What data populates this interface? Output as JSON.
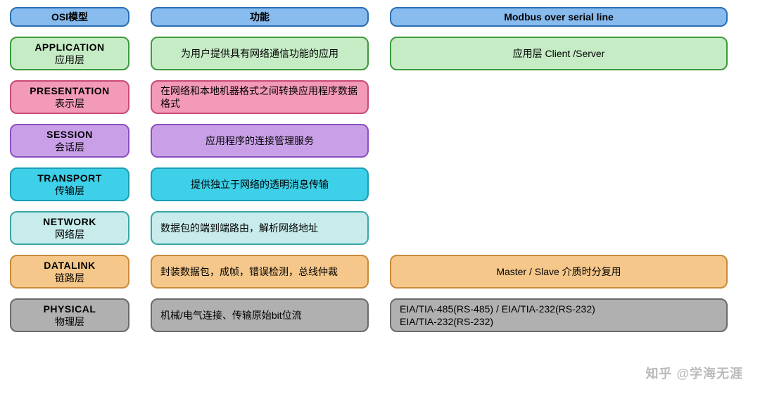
{
  "colors": {
    "header_bg": "#88bbee",
    "header_border": "#2a6fb5",
    "app_bg": "#c5ecc5",
    "app_border": "#3c9a3c",
    "pres_bg": "#f29ab8",
    "pres_border": "#c94b7a",
    "sess_bg": "#c9a0e8",
    "sess_border": "#8a4fc0",
    "trans_bg": "#3dd0e8",
    "trans_border": "#1a9db5",
    "net_bg": "#c8ecec",
    "net_border": "#3aa5a5",
    "data_bg": "#f5c78a",
    "data_border": "#c98a3a",
    "phys_bg": "#b0b0b0",
    "phys_border": "#6a6a6a",
    "text": "#000000"
  },
  "headers": {
    "col1": "OSI模型",
    "col2": "功能",
    "col3": "Modbus over serial line"
  },
  "layers": [
    {
      "key": "app",
      "osi_en": "APPLICATION",
      "osi_cn": "应用层",
      "func": "为用户提供具有网络通信功能的应用",
      "modbus": "应用层   Client /Server",
      "func_align": "center",
      "modbus_align": "center",
      "color_key": "app"
    },
    {
      "key": "pres",
      "osi_en": "PRESENTATION",
      "osi_cn": "表示层",
      "func": "在网络和本地机器格式之间转换应用程序数据格式",
      "modbus": "",
      "func_align": "left",
      "modbus_align": "center",
      "color_key": "pres"
    },
    {
      "key": "sess",
      "osi_en": "SESSION",
      "osi_cn": "会话层",
      "func": "应用程序的连接管理服务",
      "modbus": "",
      "func_align": "center",
      "modbus_align": "center",
      "color_key": "sess"
    },
    {
      "key": "trans",
      "osi_en": "TRANSPORT",
      "osi_cn": "传输层",
      "func": "提供独立于网络的透明消息传输",
      "modbus": "",
      "func_align": "center",
      "modbus_align": "center",
      "color_key": "trans"
    },
    {
      "key": "net",
      "osi_en": "NETWORK",
      "osi_cn": "网络层",
      "func": "数据包的端到端路由，解析网络地址",
      "modbus": "",
      "func_align": "left",
      "modbus_align": "center",
      "color_key": "net"
    },
    {
      "key": "data",
      "osi_en": "DATALINK",
      "osi_cn": "链路层",
      "func": "封装数据包，成帧，错误检测，总线仲裁",
      "modbus": "Master / Slave 介质时分复用",
      "func_align": "left",
      "modbus_align": "center",
      "color_key": "data"
    },
    {
      "key": "phys",
      "osi_en": "PHYSICAL",
      "osi_cn": "物理层",
      "func": "机械/电气连接、传输原始bit位流",
      "modbus": "EIA/TIA-485(RS-485)        /        EIA/TIA-232(RS-232)\nEIA/TIA-232(RS-232)",
      "func_align": "left",
      "modbus_align": "left",
      "color_key": "phys"
    }
  ],
  "watermark": "知乎 @学海无涯",
  "style": {
    "border_width": 2,
    "border_radius": 10,
    "font_size": 14,
    "header_font_size": 14
  }
}
